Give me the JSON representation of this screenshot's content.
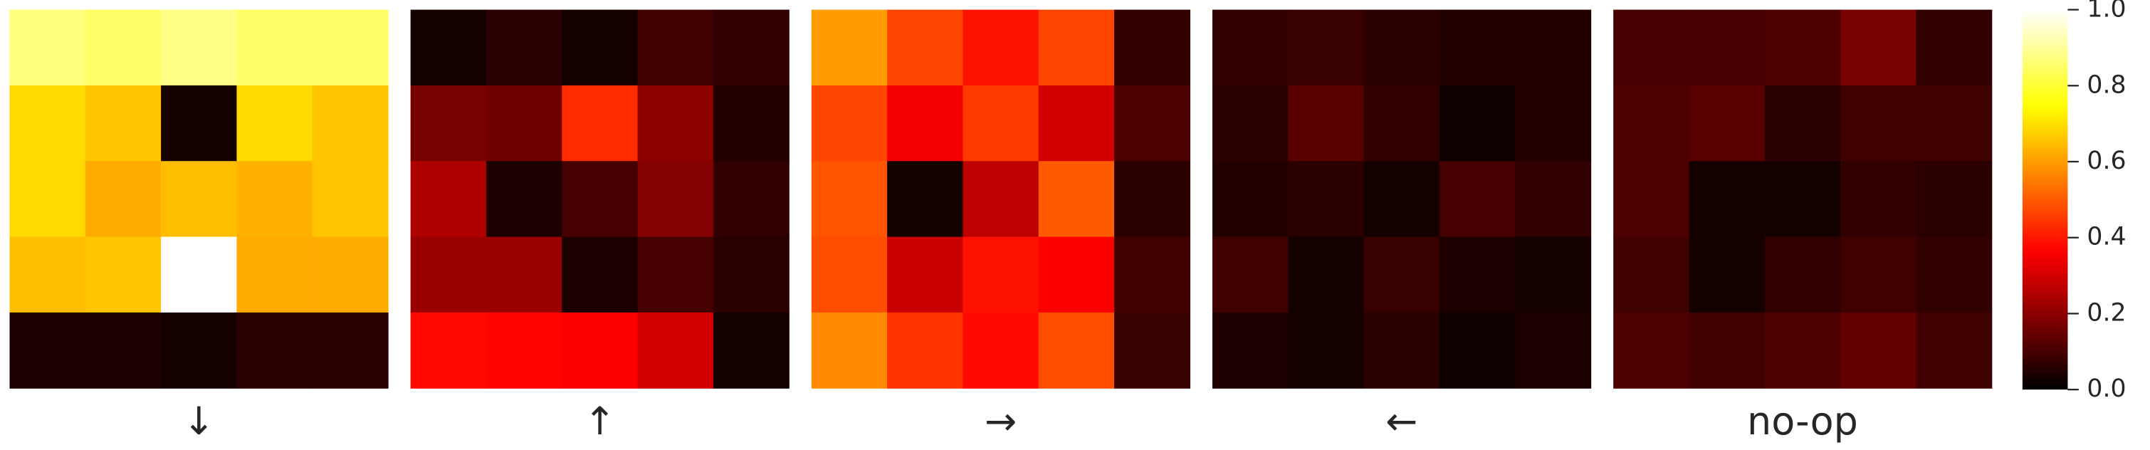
{
  "chart_data": {
    "type": "heatmap",
    "colormap": "hot",
    "clim": [
      0,
      1
    ],
    "panels": [
      {
        "label": "↓",
        "values": [
          [
            0.87,
            0.85,
            0.88,
            0.85,
            0.85
          ],
          [
            0.69,
            0.66,
            0.03,
            0.69,
            0.66
          ],
          [
            0.69,
            0.62,
            0.65,
            0.63,
            0.66
          ],
          [
            0.65,
            0.66,
            1.0,
            0.62,
            0.62
          ],
          [
            0.04,
            0.04,
            0.03,
            0.06,
            0.06
          ]
        ]
      },
      {
        "label": "↑",
        "values": [
          [
            0.03,
            0.06,
            0.03,
            0.09,
            0.07
          ],
          [
            0.17,
            0.16,
            0.43,
            0.2,
            0.05
          ],
          [
            0.25,
            0.04,
            0.1,
            0.19,
            0.07
          ],
          [
            0.22,
            0.22,
            0.04,
            0.1,
            0.06
          ],
          [
            0.38,
            0.37,
            0.36,
            0.3,
            0.03
          ]
        ]
      },
      {
        "label": "→",
        "values": [
          [
            0.6,
            0.47,
            0.39,
            0.47,
            0.07
          ],
          [
            0.47,
            0.35,
            0.45,
            0.3,
            0.11
          ],
          [
            0.49,
            0.03,
            0.27,
            0.5,
            0.06
          ],
          [
            0.48,
            0.29,
            0.39,
            0.36,
            0.09
          ],
          [
            0.57,
            0.44,
            0.38,
            0.48,
            0.08
          ]
        ]
      },
      {
        "label": "←",
        "values": [
          [
            0.07,
            0.08,
            0.06,
            0.05,
            0.05
          ],
          [
            0.06,
            0.13,
            0.07,
            0.02,
            0.05
          ],
          [
            0.05,
            0.06,
            0.03,
            0.1,
            0.07
          ],
          [
            0.09,
            0.03,
            0.08,
            0.04,
            0.03
          ],
          [
            0.04,
            0.03,
            0.06,
            0.02,
            0.04
          ]
        ]
      },
      {
        "label": "no-op",
        "values": [
          [
            0.1,
            0.1,
            0.11,
            0.17,
            0.07
          ],
          [
            0.11,
            0.13,
            0.06,
            0.09,
            0.09
          ],
          [
            0.11,
            0.03,
            0.03,
            0.07,
            0.06
          ],
          [
            0.09,
            0.03,
            0.07,
            0.09,
            0.07
          ],
          [
            0.11,
            0.09,
            0.11,
            0.14,
            0.09
          ]
        ]
      }
    ],
    "cticks": [
      {
        "value": 0,
        "label": "0.0"
      },
      0.2,
      0.4,
      0.6,
      0.8,
      {
        "value": 1,
        "label": "1.0"
      }
    ]
  }
}
